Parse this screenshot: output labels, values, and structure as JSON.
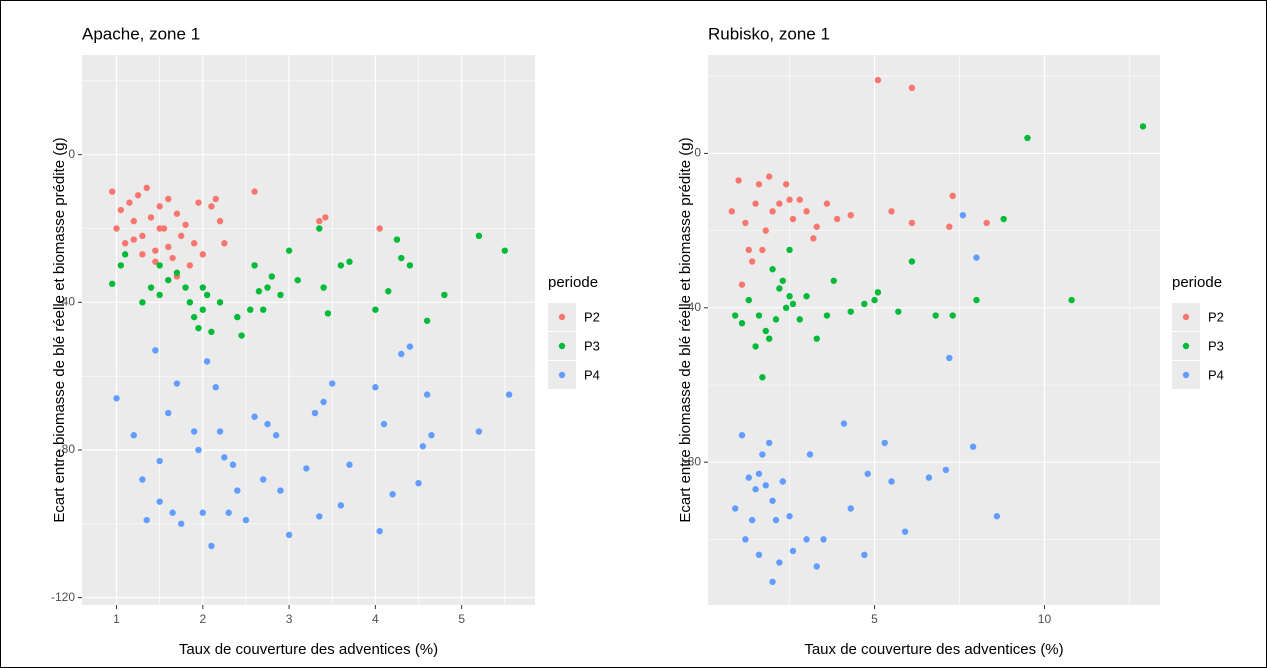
{
  "chart_data": [
    {
      "type": "scatter",
      "title": "Apache, zone 1",
      "x_label": "Taux de couverture des adventices (%)",
      "y_label": "Ecart entre biomasse de blé réelle et biomasse prédite (g)",
      "legend_title": "periode",
      "legend": "right",
      "grid": true,
      "xlim": [
        0.6,
        5.85
      ],
      "xticks": [
        1,
        2,
        3,
        4,
        5
      ],
      "ylim": [
        -122,
        27
      ],
      "yticks": [
        -120,
        -80,
        -40,
        0
      ],
      "series": [
        {
          "name": "P2",
          "color": "#F8766D",
          "x": [
            0.95,
            1.0,
            1.05,
            1.1,
            1.15,
            1.2,
            1.25,
            1.3,
            1.35,
            1.4,
            1.45,
            1.5,
            1.55,
            1.6,
            1.65,
            1.7,
            1.75,
            1.8,
            1.85,
            1.9,
            1.95,
            2.0,
            2.1,
            2.15,
            2.2,
            2.25,
            1.3,
            1.5,
            1.7,
            1.45,
            2.6,
            3.35,
            3.42,
            4.05,
            1.2,
            1.6
          ],
          "values": [
            -10,
            -20,
            -15,
            -24,
            -13,
            -18,
            -11,
            -22,
            -9,
            -17,
            -26,
            -14,
            -20,
            -12,
            -28,
            -16,
            -22,
            -19,
            -30,
            -24,
            -13,
            -27,
            -14,
            -12,
            -18,
            -24,
            -27,
            -20,
            -33,
            -29,
            -10,
            -18,
            -17,
            -20,
            -23,
            -25
          ]
        },
        {
          "name": "P3",
          "color": "#00BA38",
          "x": [
            0.95,
            1.05,
            1.1,
            1.3,
            1.4,
            1.5,
            1.6,
            1.7,
            1.8,
            1.85,
            1.9,
            1.95,
            2.0,
            2.05,
            2.1,
            2.2,
            2.4,
            2.45,
            2.55,
            2.6,
            2.65,
            2.7,
            2.75,
            2.8,
            2.9,
            3.0,
            3.1,
            3.35,
            3.4,
            3.45,
            3.6,
            3.7,
            4.0,
            4.15,
            4.25,
            4.3,
            4.4,
            4.6,
            4.8,
            5.2,
            5.5,
            1.5,
            2.0
          ],
          "values": [
            -35,
            -30,
            -27,
            -40,
            -36,
            -38,
            -34,
            -32,
            -36,
            -40,
            -44,
            -47,
            -42,
            -38,
            -48,
            -40,
            -44,
            -49,
            -42,
            -30,
            -37,
            -42,
            -36,
            -33,
            -38,
            -26,
            -34,
            -20,
            -36,
            -43,
            -30,
            -29,
            -42,
            -37,
            -23,
            -28,
            -30,
            -45,
            -38,
            -22,
            -26,
            -30,
            -36
          ]
        },
        {
          "name": "P4",
          "color": "#619CFF",
          "x": [
            1.0,
            1.2,
            1.3,
            1.35,
            1.45,
            1.5,
            1.6,
            1.65,
            1.7,
            1.75,
            1.9,
            1.95,
            2.0,
            2.05,
            2.1,
            2.15,
            2.2,
            2.25,
            2.3,
            2.35,
            2.4,
            2.5,
            2.6,
            2.7,
            2.75,
            2.9,
            3.0,
            3.2,
            3.3,
            3.4,
            3.5,
            3.6,
            3.7,
            4.0,
            4.05,
            4.1,
            4.2,
            4.3,
            4.4,
            4.5,
            4.6,
            4.65,
            5.2,
            5.55,
            1.5,
            2.85,
            3.35,
            4.55
          ],
          "values": [
            -66,
            -76,
            -88,
            -99,
            -53,
            -83,
            -70,
            -97,
            -62,
            -100,
            -75,
            -80,
            -97,
            -56,
            -106,
            -63,
            -75,
            -82,
            -97,
            -84,
            -91,
            -99,
            -71,
            -88,
            -73,
            -91,
            -103,
            -85,
            -70,
            -67,
            -62,
            -95,
            -84,
            -63,
            -102,
            -73,
            -92,
            -54,
            -52,
            -89,
            -65,
            -76,
            -75,
            -65,
            -94,
            -76,
            -98,
            -79
          ]
        }
      ]
    },
    {
      "type": "scatter",
      "title": "Rubisko, zone 1",
      "x_label": "Taux de couverture des adventices (%)",
      "y_label": "Ecart entre biomasse de blé réelle et biomasse prédite (g)",
      "legend_title": "periode",
      "legend": "right",
      "grid": true,
      "xlim": [
        0.1,
        13.4
      ],
      "xticks": [
        5,
        10
      ],
      "ylim": [
        -117,
        25.5
      ],
      "yticks": [
        -80,
        -40,
        0
      ],
      "series": [
        {
          "name": "P2",
          "color": "#F8766D",
          "x": [
            0.8,
            1.0,
            1.2,
            1.4,
            1.5,
            1.6,
            1.8,
            2.0,
            2.2,
            2.4,
            2.6,
            2.8,
            3.0,
            3.3,
            3.6,
            3.9,
            4.3,
            1.1,
            1.7,
            1.9,
            2.5,
            5.5,
            6.1,
            7.2,
            7.3,
            8.3,
            5.1,
            6.1,
            1.3,
            3.2
          ],
          "values": [
            -15,
            -7,
            -18,
            -28,
            -13,
            -8,
            -20,
            -15,
            -13,
            -8,
            -17,
            -12,
            -15,
            -19,
            -13,
            -17,
            -16,
            -34,
            -25,
            -6,
            -12,
            -15,
            -18,
            -19,
            -11,
            -18,
            19,
            17,
            -25,
            -22
          ]
        },
        {
          "name": "P3",
          "color": "#00BA38",
          "x": [
            0.9,
            1.1,
            1.3,
            1.5,
            1.6,
            1.7,
            1.8,
            2.0,
            2.1,
            2.2,
            2.3,
            2.4,
            2.5,
            2.6,
            2.8,
            3.0,
            3.3,
            3.6,
            3.8,
            4.3,
            4.7,
            5.0,
            5.1,
            5.7,
            6.8,
            7.3,
            8.0,
            8.8,
            9.5,
            10.8,
            12.9,
            6.1,
            1.9,
            2.5
          ],
          "values": [
            -42,
            -44,
            -38,
            -50,
            -42,
            -58,
            -46,
            -30,
            -43,
            -35,
            -33,
            -40,
            -25,
            -39,
            -43,
            -37,
            -48,
            -42,
            -33,
            -41,
            -39,
            -38,
            -36,
            -41,
            -42,
            -42,
            -38,
            -17,
            4,
            -38,
            7,
            -28,
            -48,
            -37
          ]
        },
        {
          "name": "P4",
          "color": "#619CFF",
          "x": [
            0.9,
            1.1,
            1.2,
            1.3,
            1.4,
            1.5,
            1.6,
            1.7,
            1.8,
            1.9,
            2.0,
            2.1,
            2.2,
            2.3,
            2.5,
            2.6,
            3.0,
            3.1,
            3.3,
            3.5,
            4.1,
            4.3,
            4.7,
            4.8,
            5.3,
            5.5,
            5.9,
            6.6,
            7.1,
            7.9,
            8.6,
            7.6,
            8.0,
            7.2,
            1.6,
            2.0
          ],
          "values": [
            -92,
            -73,
            -100,
            -84,
            -95,
            -87,
            -104,
            -78,
            -86,
            -75,
            -111,
            -95,
            -106,
            -85,
            -94,
            -103,
            -100,
            -78,
            -107,
            -100,
            -70,
            -92,
            -104,
            -83,
            -75,
            -85,
            -98,
            -84,
            -82,
            -76,
            -94,
            -16,
            -27,
            -53,
            -83,
            -90
          ]
        }
      ]
    }
  ]
}
